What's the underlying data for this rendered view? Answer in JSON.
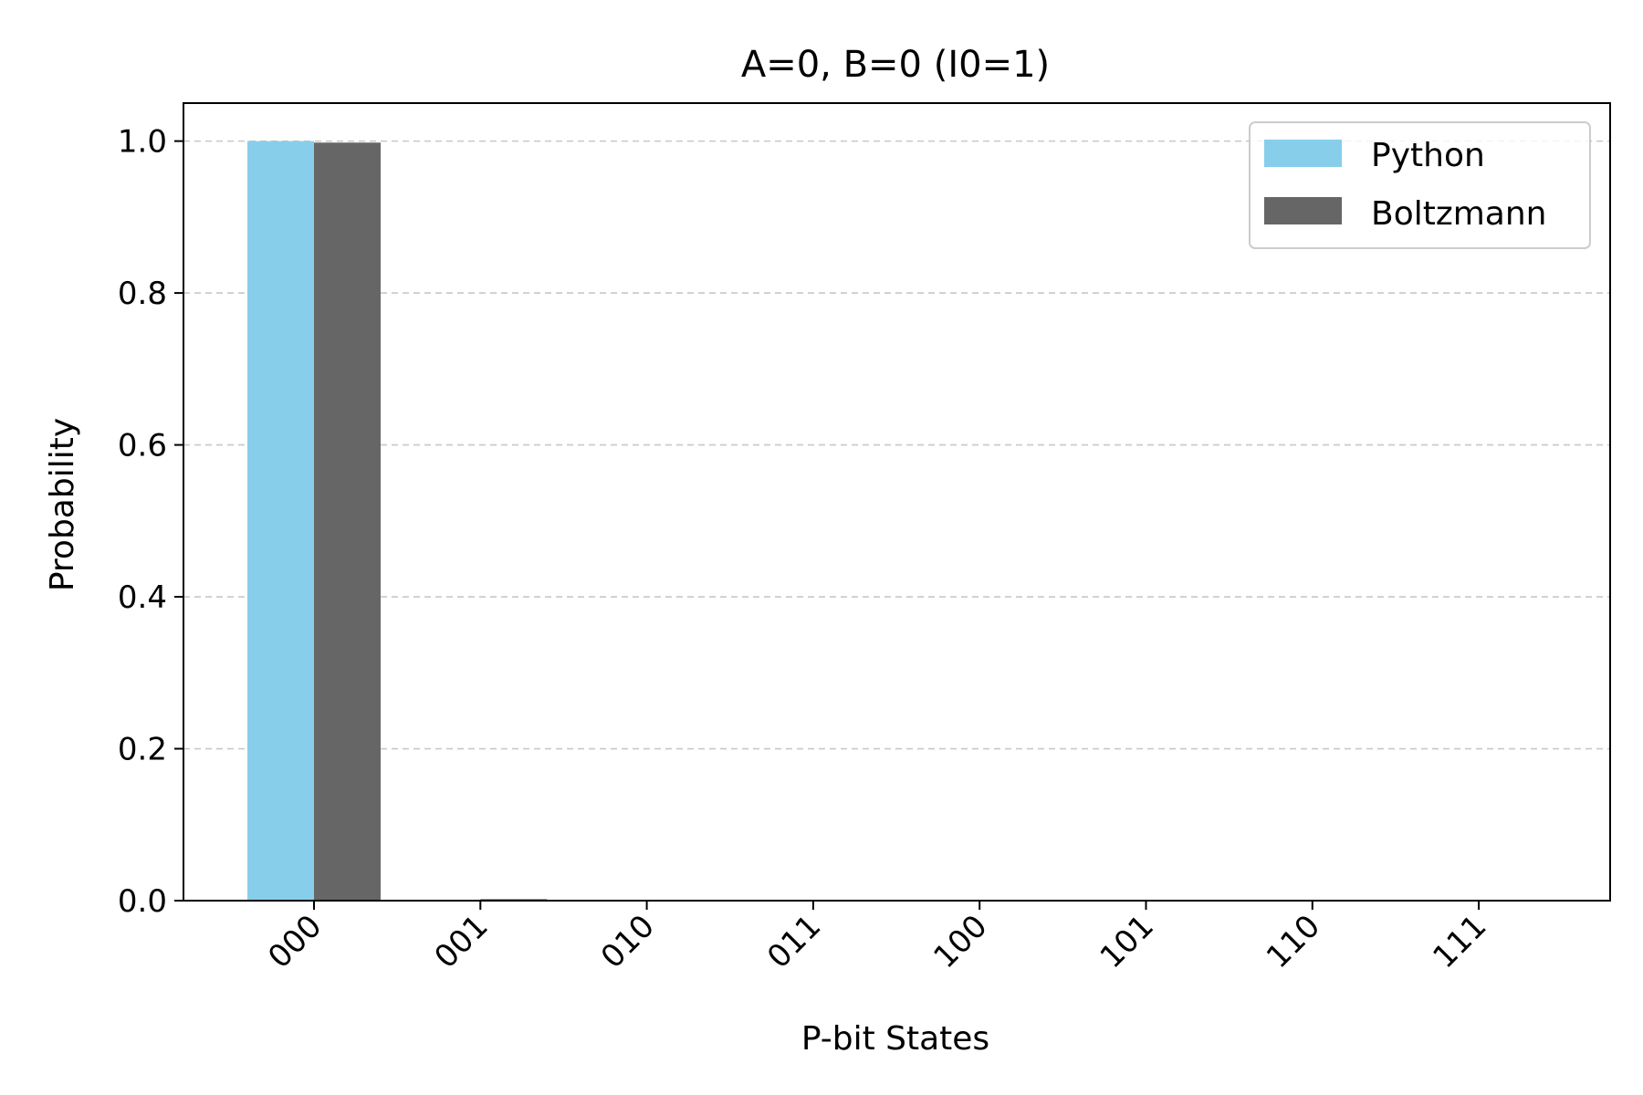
{
  "chart_data": {
    "type": "bar",
    "title": "A=0, B=0 (I0=1)",
    "xlabel": "P-bit States",
    "ylabel": "Probability",
    "categories": [
      "000",
      "001",
      "010",
      "011",
      "100",
      "101",
      "110",
      "111"
    ],
    "series": [
      {
        "name": "Python",
        "color": "#87ceeb",
        "values": [
          1.0,
          0.0,
          0.0,
          0.0,
          0.0,
          0.0,
          0.0,
          0.0
        ]
      },
      {
        "name": "Boltzmann",
        "color": "#666666",
        "values": [
          0.998,
          0.002,
          0.0,
          0.0,
          0.0,
          0.0,
          0.0,
          0.0
        ]
      }
    ],
    "ylim": [
      0,
      1.05
    ],
    "yticks": [
      0.0,
      0.2,
      0.4,
      0.6,
      0.8,
      1.0
    ],
    "ytick_labels": [
      "0.0",
      "0.2",
      "0.4",
      "0.6",
      "0.8",
      "1.0"
    ],
    "grid": "y, dashed",
    "legend": "top-right",
    "xtick_rotation": 45
  }
}
